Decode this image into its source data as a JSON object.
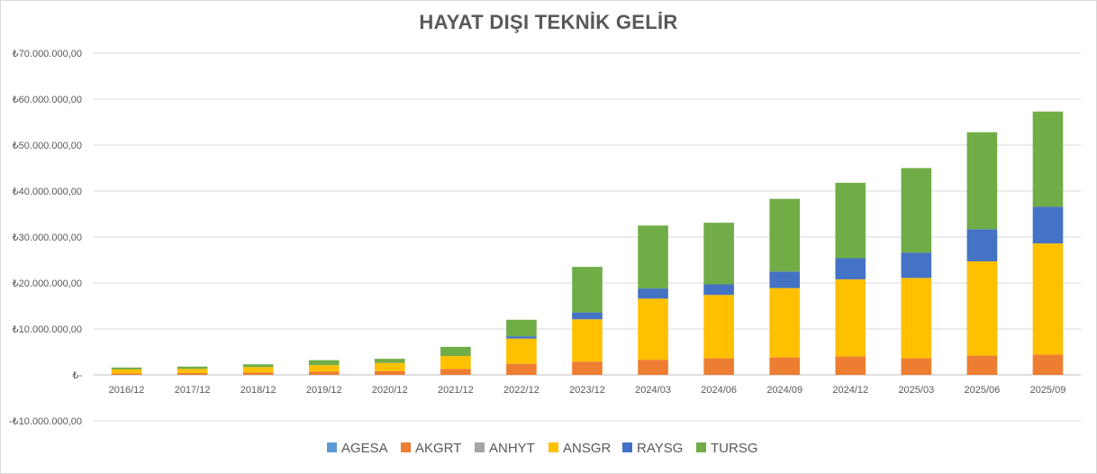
{
  "chart_data": {
    "type": "bar",
    "stacked": true,
    "title": "HAYAT DIŞI TEKNİK GELİR",
    "xlabel": "",
    "ylabel": "",
    "ylim": [
      -10000000,
      70000000
    ],
    "y_ticks": [
      -10000000,
      0,
      10000000,
      20000000,
      30000000,
      40000000,
      50000000,
      60000000,
      70000000
    ],
    "y_tick_labels": [
      "-₺10.000.000,00",
      "₺-",
      "₺10.000.000,00",
      "₺20.000.000,00",
      "₺30.000.000,00",
      "₺40.000.000,00",
      "₺50.000.000,00",
      "₺60.000.000,00",
      "₺70.000.000,00"
    ],
    "grid": true,
    "legend_position": "bottom",
    "categories": [
      "2016/12",
      "2017/12",
      "2018/12",
      "2019/12",
      "2020/12",
      "2021/12",
      "2022/12",
      "2023/12",
      "2024/03",
      "2024/06",
      "2024/09",
      "2024/12",
      "2025/03",
      "2025/06",
      "2025/09"
    ],
    "series": [
      {
        "name": "AGESA",
        "color": "#5b9bd5",
        "values": [
          0,
          0,
          0,
          0,
          0,
          0,
          0,
          0,
          0,
          0,
          0,
          0,
          0,
          0,
          0
        ]
      },
      {
        "name": "AKGRT",
        "color": "#ed7d31",
        "values": [
          300000,
          400000,
          500000,
          700000,
          800000,
          1300000,
          2400000,
          2900000,
          3300000,
          3600000,
          3800000,
          4000000,
          3600000,
          4200000,
          4400000
        ]
      },
      {
        "name": "ANHYT",
        "color": "#a5a5a5",
        "values": [
          0,
          0,
          0,
          0,
          0,
          0,
          0,
          0,
          0,
          0,
          0,
          0,
          0,
          0,
          0
        ]
      },
      {
        "name": "ANSGR",
        "color": "#ffc000",
        "values": [
          900000,
          900000,
          1200000,
          1400000,
          1800000,
          2800000,
          5500000,
          9200000,
          13300000,
          13800000,
          15100000,
          16800000,
          17500000,
          20500000,
          24200000
        ]
      },
      {
        "name": "RAYSG",
        "color": "#4472c4",
        "values": [
          0,
          0,
          0,
          0,
          0,
          0,
          500000,
          1500000,
          2200000,
          2300000,
          3600000,
          4600000,
          5500000,
          7000000,
          8000000
        ]
      },
      {
        "name": "TURSG",
        "color": "#70ad47",
        "values": [
          400000,
          500000,
          600000,
          1100000,
          900000,
          2000000,
          3600000,
          9900000,
          13700000,
          13400000,
          15800000,
          16400000,
          18400000,
          21100000,
          20700000
        ]
      }
    ]
  }
}
